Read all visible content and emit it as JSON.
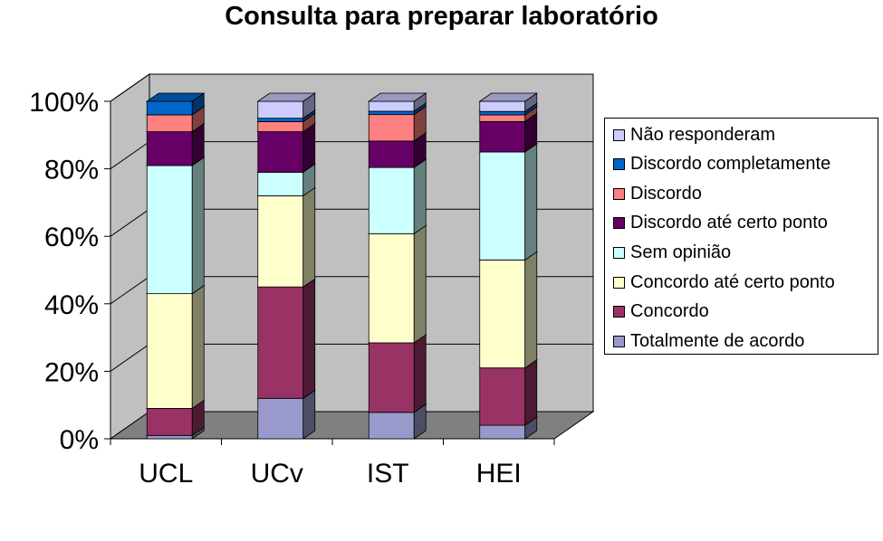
{
  "chart_data": {
    "type": "bar",
    "stacked": true,
    "percent_stacked": true,
    "title": "Consulta para preparar laboratório",
    "xlabel": "",
    "ylabel": "",
    "ylim": [
      0,
      100
    ],
    "y_ticks": [
      "0%",
      "20%",
      "40%",
      "60%",
      "80%",
      "100%"
    ],
    "categories": [
      "UCL",
      "UCv",
      "IST",
      "HEI"
    ],
    "legend_position": "right",
    "grid": true,
    "series": [
      {
        "name": "Totalmente de acordo",
        "color": "#9999CC",
        "values": [
          1,
          12,
          8,
          4
        ]
      },
      {
        "name": "Concordo",
        "color": "#993366",
        "values": [
          8,
          33,
          21,
          17
        ]
      },
      {
        "name": "Concordo até certo ponto",
        "color": "#FFFFCC",
        "values": [
          34,
          27,
          33,
          32
        ]
      },
      {
        "name": "Sem opinião",
        "color": "#CCFFFF",
        "values": [
          38,
          7,
          20,
          32
        ]
      },
      {
        "name": "Discordo até certo ponto",
        "color": "#660066",
        "values": [
          10,
          12,
          8,
          9
        ]
      },
      {
        "name": "Discordo",
        "color": "#FF8080",
        "values": [
          5,
          3,
          8,
          2
        ]
      },
      {
        "name": "Discordo completamente",
        "color": "#0066CC",
        "values": [
          4,
          1,
          1,
          1
        ]
      },
      {
        "name": "Não responderam",
        "color": "#CCCCFF",
        "values": [
          0,
          5,
          3,
          3
        ]
      }
    ]
  }
}
